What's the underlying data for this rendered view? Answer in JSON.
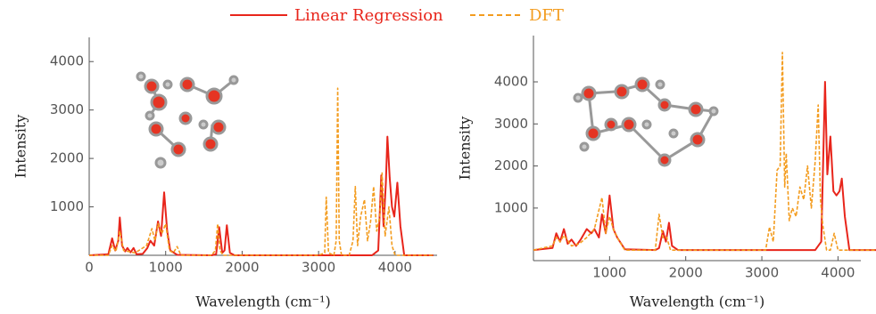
{
  "chart_data": [
    {
      "type": "line",
      "x_label": "Wavelength (cm⁻¹)",
      "y_label": "Intensity",
      "xlim": [
        0,
        4550
      ],
      "ylim": [
        0,
        4500
      ],
      "xticks": [
        0,
        1000,
        2000,
        3000,
        4000
      ],
      "yticks": [
        1000,
        2000,
        3000,
        4000
      ],
      "series": [
        {
          "name": "Linear Regression",
          "color": "#e8251b",
          "dash": false,
          "x": [
            0,
            250,
            300,
            340,
            380,
            400,
            430,
            470,
            500,
            540,
            580,
            620,
            700,
            760,
            800,
            850,
            900,
            940,
            980,
            1020,
            1060,
            1150,
            1600,
            1660,
            1700,
            1740,
            1770,
            1800,
            1840,
            1900,
            3700,
            3780,
            3820,
            3850,
            3880,
            3900,
            3930,
            3960,
            3990,
            4030,
            4070,
            4120,
            4500
          ],
          "values": [
            0,
            20,
            350,
            100,
            300,
            780,
            200,
            80,
            150,
            60,
            150,
            20,
            30,
            150,
            300,
            200,
            700,
            400,
            1300,
            500,
            100,
            10,
            0,
            20,
            580,
            50,
            100,
            620,
            50,
            0,
            0,
            100,
            1650,
            600,
            1500,
            2450,
            1600,
            1000,
            800,
            1500,
            600,
            0,
            0
          ]
        },
        {
          "name": "DFT",
          "color": "#f39c1f",
          "dash": true,
          "x": [
            0,
            250,
            300,
            350,
            400,
            450,
            600,
            750,
            820,
            860,
            900,
            950,
            1000,
            1050,
            1100,
            1150,
            1200,
            1600,
            1650,
            1680,
            1710,
            1750,
            3000,
            3080,
            3100,
            3130,
            3200,
            3230,
            3250,
            3270,
            3300,
            3400,
            3450,
            3480,
            3510,
            3550,
            3600,
            3640,
            3680,
            3720,
            3760,
            3800,
            3830,
            3870,
            3920,
            3960,
            4000,
            4500
          ],
          "values": [
            0,
            0,
            200,
            80,
            500,
            100,
            50,
            200,
            550,
            300,
            650,
            450,
            650,
            100,
            50,
            180,
            0,
            0,
            100,
            650,
            100,
            0,
            0,
            50,
            1200,
            50,
            0,
            300,
            3450,
            300,
            0,
            0,
            300,
            1420,
            200,
            800,
            1150,
            300,
            700,
            1420,
            500,
            800,
            1700,
            400,
            1000,
            200,
            0,
            0
          ]
        }
      ]
    },
    {
      "type": "line",
      "x_label": "Wavelength (cm⁻¹)",
      "y_label": "Intensity",
      "xlim": [
        0,
        4300
      ],
      "ylim": [
        -250,
        5100
      ],
      "xticks": [
        1000,
        2000,
        3000,
        4000
      ],
      "yticks": [
        1000,
        2000,
        3000,
        4000
      ],
      "series": [
        {
          "color": "#e8251b",
          "dash": false,
          "x": [
            0,
            250,
            300,
            350,
            400,
            450,
            500,
            560,
            620,
            700,
            760,
            800,
            860,
            900,
            950,
            1000,
            1050,
            1100,
            1200,
            1600,
            1650,
            1700,
            1740,
            1780,
            1820,
            1900,
            3700,
            3780,
            3830,
            3860,
            3900,
            3940,
            3980,
            4020,
            4050,
            4090,
            4150,
            4500
          ],
          "values": [
            0,
            50,
            400,
            200,
            500,
            150,
            250,
            100,
            250,
            500,
            400,
            500,
            300,
            850,
            400,
            1300,
            500,
            300,
            20,
            0,
            50,
            450,
            200,
            650,
            100,
            0,
            0,
            200,
            4000,
            1800,
            2700,
            1400,
            1300,
            1400,
            1700,
            800,
            0,
            0
          ]
        },
        {
          "color": "#f39c1f",
          "dash": true,
          "x": [
            0,
            250,
            300,
            350,
            400,
            500,
            600,
            700,
            800,
            900,
            950,
            1000,
            1050,
            1100,
            1200,
            1600,
            1650,
            1700,
            1750,
            1800,
            3050,
            3100,
            3150,
            3200,
            3240,
            3270,
            3300,
            3320,
            3360,
            3400,
            3450,
            3500,
            3550,
            3600,
            3650,
            3700,
            3740,
            3770,
            3800,
            3850,
            3900,
            3950,
            4000,
            4500
          ],
          "values": [
            0,
            100,
            300,
            200,
            350,
            100,
            150,
            300,
            500,
            1250,
            400,
            800,
            500,
            300,
            0,
            0,
            850,
            300,
            300,
            0,
            0,
            550,
            200,
            1900,
            2000,
            4700,
            1500,
            2300,
            700,
            1000,
            800,
            1500,
            1200,
            2000,
            1000,
            2100,
            3450,
            1200,
            600,
            0,
            0,
            400,
            0,
            0
          ]
        }
      ]
    }
  ]
}
